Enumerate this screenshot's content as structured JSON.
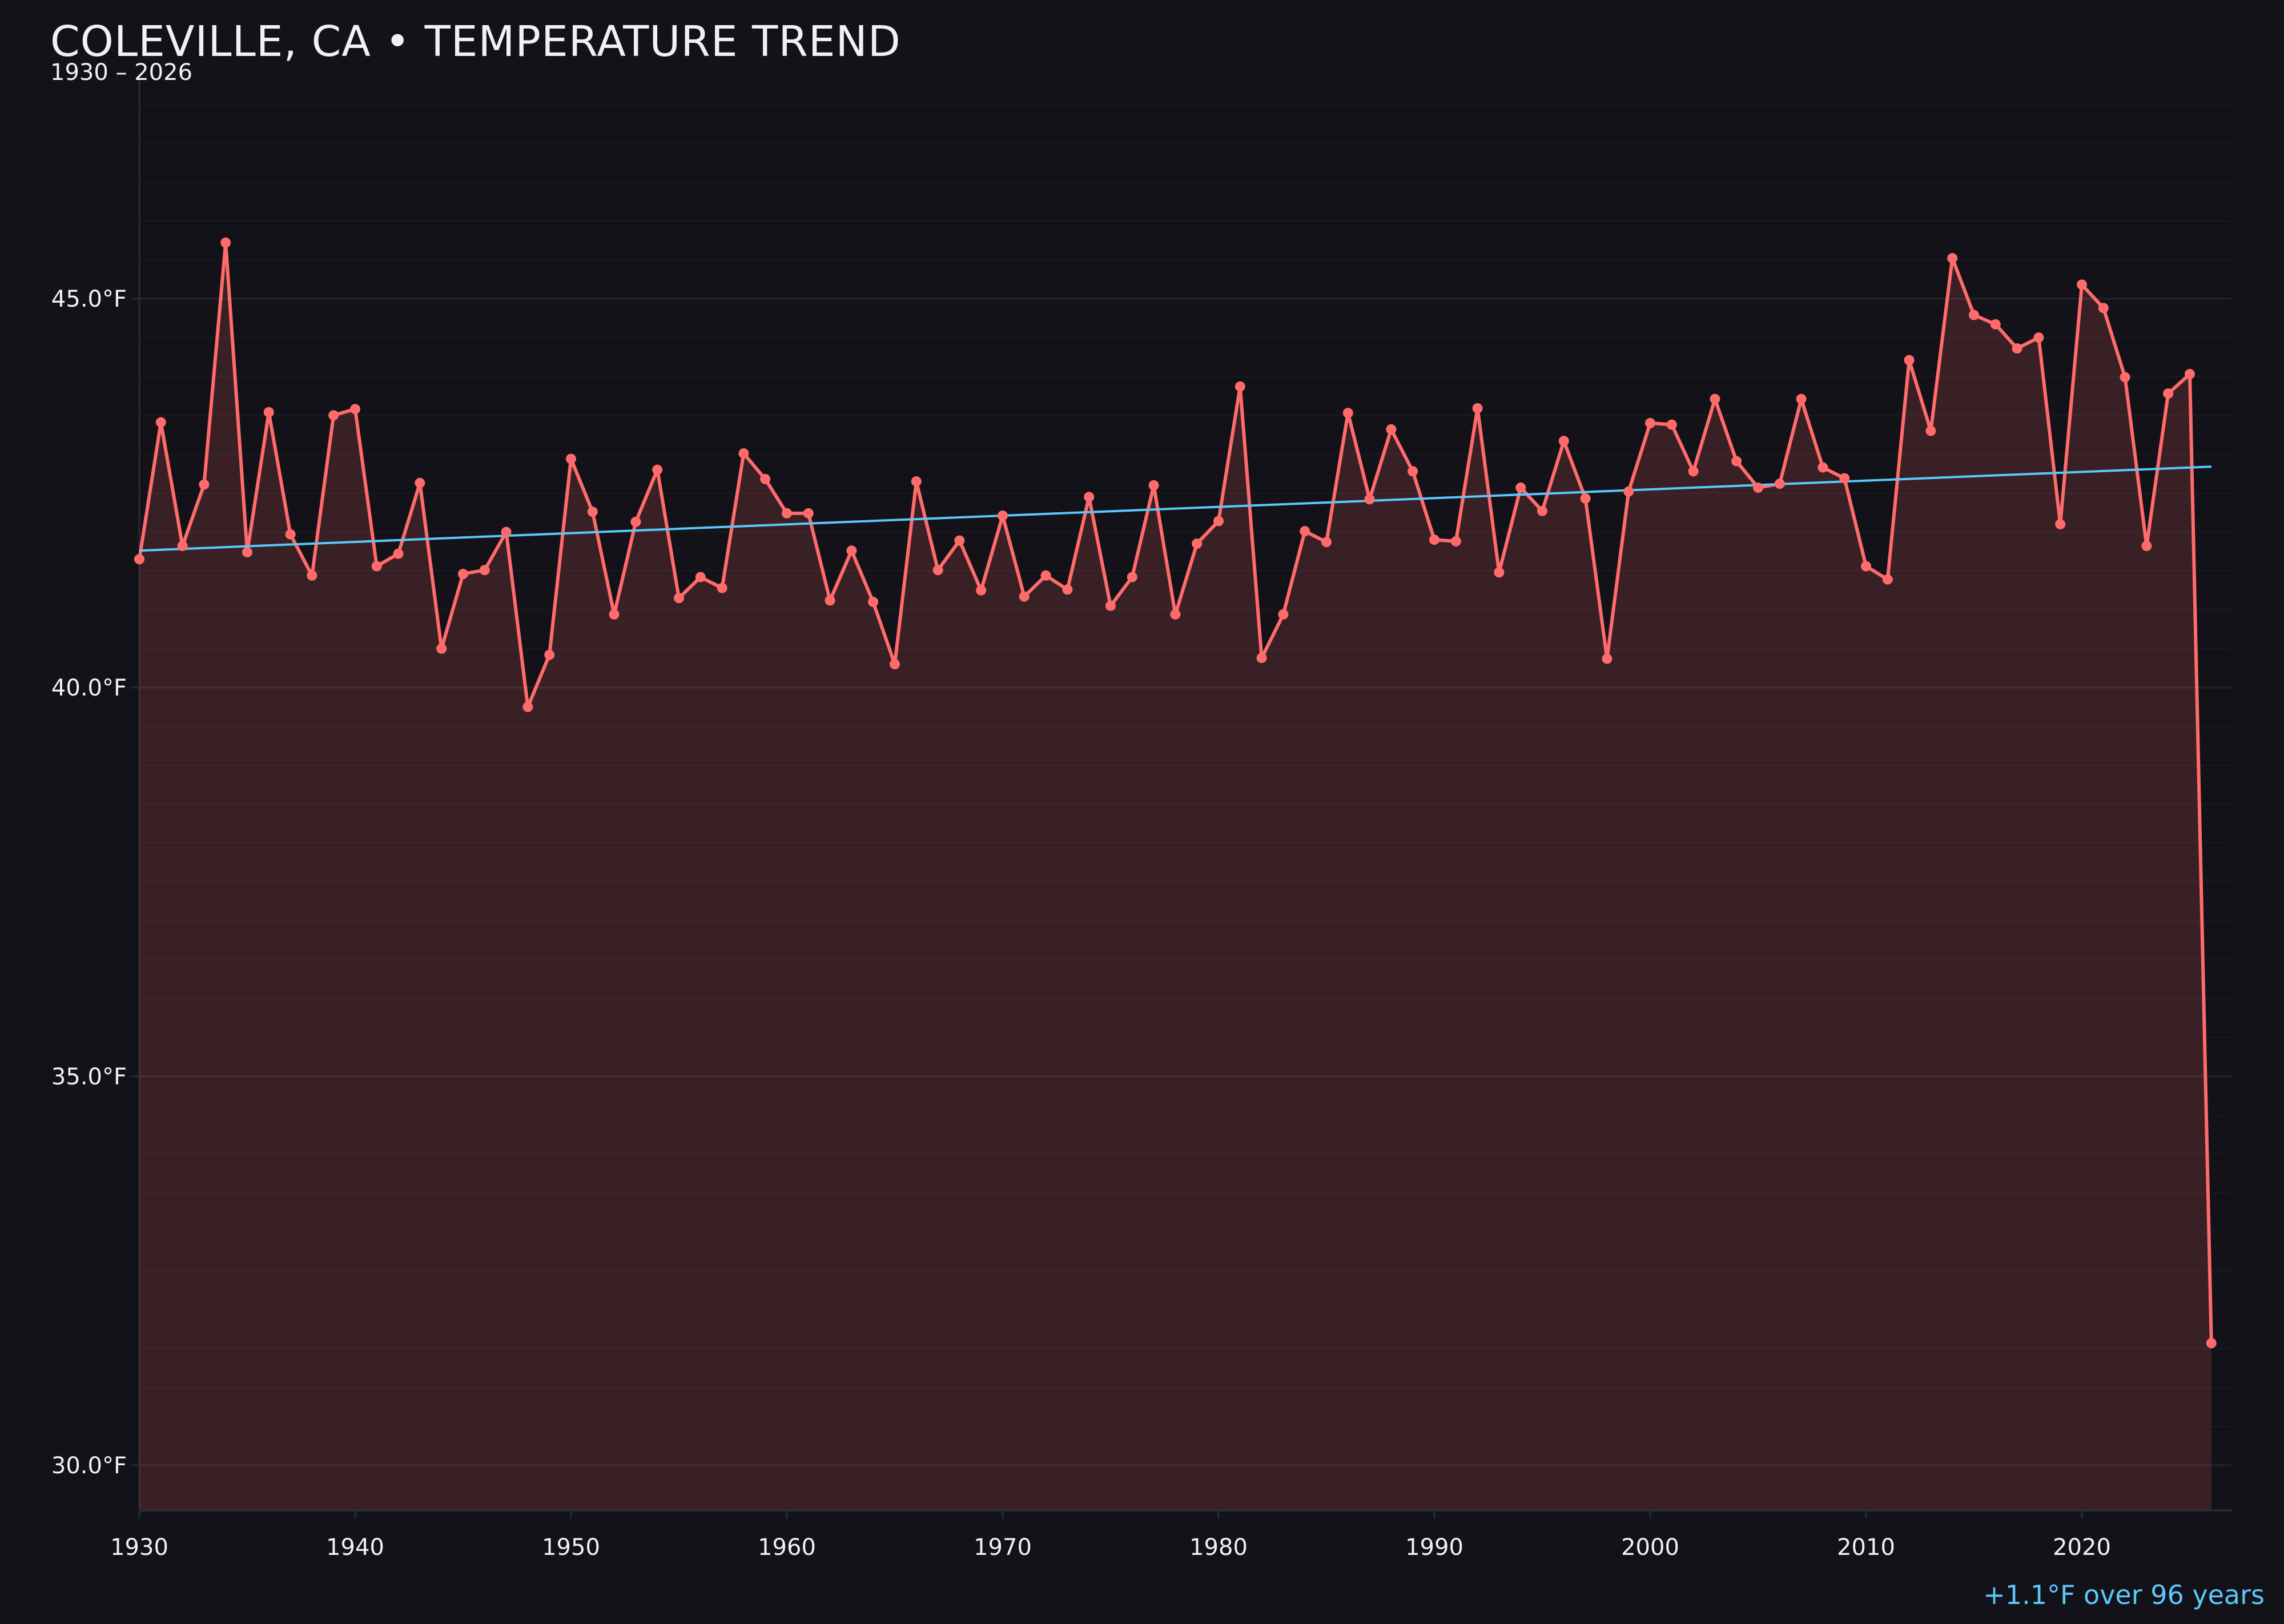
{
  "chart_data": {
    "type": "line",
    "title": "COLEVILLE, CA • TEMPERATURE TREND",
    "subtitle": "1930 – 2026",
    "xlabel": "",
    "ylabel": "",
    "annotation": "+1.1°F over 96 years",
    "xlim": [
      1930,
      2027
    ],
    "ylim": [
      29.4,
      47.8
    ],
    "x_ticks": [
      "1930",
      "1940",
      "1950",
      "1960",
      "1970",
      "1980",
      "1990",
      "2000",
      "2010",
      "2020"
    ],
    "y_ticks": [
      "30.0°F",
      "35.0°F",
      "40.0°F",
      "45.0°F"
    ],
    "y_tick_values": [
      30,
      35,
      40,
      45
    ],
    "grid": true,
    "colors": {
      "background": "#121218",
      "series": "#ff6b6b",
      "area_fill": "#ff6b6b",
      "trend": "#5ac8fa",
      "text": "#f0f0f5"
    },
    "x": [
      1930,
      1931,
      1932,
      1933,
      1934,
      1935,
      1936,
      1937,
      1938,
      1939,
      1940,
      1941,
      1942,
      1943,
      1944,
      1945,
      1946,
      1947,
      1948,
      1949,
      1950,
      1951,
      1952,
      1953,
      1954,
      1955,
      1956,
      1957,
      1958,
      1959,
      1960,
      1961,
      1962,
      1963,
      1964,
      1965,
      1966,
      1967,
      1968,
      1969,
      1970,
      1971,
      1972,
      1973,
      1974,
      1975,
      1976,
      1977,
      1978,
      1979,
      1980,
      1981,
      1982,
      1983,
      1984,
      1985,
      1986,
      1987,
      1988,
      1989,
      1990,
      1991,
      1992,
      1993,
      1994,
      1995,
      1996,
      1997,
      1998,
      1999,
      2000,
      2001,
      2002,
      2003,
      2004,
      2005,
      2006,
      2007,
      2008,
      2009,
      2010,
      2011,
      2012,
      2013,
      2014,
      2015,
      2016,
      2017,
      2018,
      2019,
      2020,
      2021,
      2022,
      2023,
      2024,
      2025,
      2026
    ],
    "series": [
      {
        "values": [
          41.65,
          43.41,
          41.82,
          42.61,
          45.72,
          41.74,
          43.54,
          41.97,
          41.44,
          43.5,
          43.58,
          41.56,
          41.72,
          42.63,
          40.5,
          41.46,
          41.51,
          42.0,
          39.75,
          40.42,
          42.94,
          42.26,
          40.94,
          42.13,
          42.8,
          41.15,
          41.42,
          41.28,
          43.01,
          42.68,
          42.24,
          42.24,
          41.12,
          41.76,
          41.1,
          40.3,
          42.65,
          41.51,
          41.89,
          41.25,
          42.21,
          41.17,
          41.44,
          41.26,
          42.45,
          41.05,
          41.42,
          42.6,
          40.94,
          41.85,
          42.14,
          43.87,
          40.38,
          40.94,
          42.01,
          41.87,
          43.53,
          42.42,
          43.32,
          42.78,
          41.9,
          41.88,
          43.59,
          41.48,
          42.57,
          42.27,
          43.17,
          42.43,
          40.37,
          42.52,
          43.4,
          43.38,
          42.78,
          43.71,
          42.91,
          42.57,
          42.62,
          43.71,
          42.83,
          42.69,
          41.56,
          41.39,
          44.21,
          43.3,
          45.52,
          44.79,
          44.67,
          44.36,
          44.5,
          42.1,
          45.18,
          44.88,
          43.99,
          41.82,
          43.78,
          44.03,
          31.57
        ]
      }
    ],
    "trend": {
      "x": [
        1930,
        2026
      ],
      "y": [
        41.76,
        42.84
      ]
    }
  }
}
